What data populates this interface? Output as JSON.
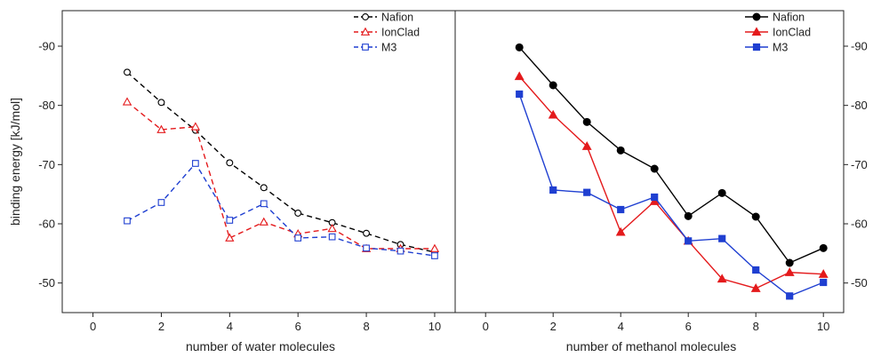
{
  "chart_data": [
    {
      "type": "line",
      "panel": "left",
      "xlabel": "number of water molecules",
      "ylabel": "binding energy [kJ/mol]",
      "xlim": [
        -0.9,
        10.6
      ],
      "ylim": [
        -45,
        -96
      ],
      "xticks": [
        "0",
        "2",
        "4",
        "6",
        "8",
        "10"
      ],
      "yticks": [
        "-90",
        "-80",
        "-70",
        "-60",
        "-50"
      ],
      "y_axis_side": "left",
      "line_style": "dashed",
      "marker_fill": "open",
      "grid": false,
      "legend_position": "top-right",
      "x": [
        1,
        2,
        3,
        4,
        5,
        6,
        7,
        8,
        9,
        10
      ],
      "series": [
        {
          "name": "Nafion",
          "color": "#000000",
          "marker": "circle",
          "values": [
            -85.6,
            -80.5,
            -75.8,
            -70.3,
            -66.1,
            -61.8,
            -60.2,
            -58.4,
            -56.5,
            -55.2
          ]
        },
        {
          "name": "IonClad",
          "color": "#e41a1c",
          "marker": "triangle",
          "values": [
            -80.6,
            -75.9,
            -76.4,
            -57.6,
            -60.3,
            -58.3,
            -59.2,
            -55.8,
            -55.8,
            -55.8
          ]
        },
        {
          "name": "M3",
          "color": "#1f3fd1",
          "marker": "square",
          "values": [
            -60.5,
            -63.6,
            -70.2,
            -60.6,
            -63.4,
            -57.6,
            -57.8,
            -55.9,
            -55.4,
            -54.6
          ]
        }
      ]
    },
    {
      "type": "line",
      "panel": "right",
      "xlabel": "number of methanol molecules",
      "ylabel": "",
      "xlim": [
        -0.9,
        10.6
      ],
      "ylim": [
        -45,
        -96
      ],
      "xticks": [
        "0",
        "2",
        "4",
        "6",
        "8",
        "10"
      ],
      "yticks": [
        "-90",
        "-80",
        "-70",
        "-60",
        "-50"
      ],
      "y_axis_side": "right",
      "line_style": "solid",
      "marker_fill": "filled",
      "grid": false,
      "legend_position": "top-right",
      "x": [
        1,
        2,
        3,
        4,
        5,
        6,
        7,
        8,
        9,
        10
      ],
      "series": [
        {
          "name": "Nafion",
          "color": "#000000",
          "marker": "circle",
          "values": [
            -89.8,
            -83.4,
            -77.2,
            -72.4,
            -69.3,
            -61.3,
            -65.2,
            -61.2,
            -53.4,
            -55.9
          ]
        },
        {
          "name": "IonClad",
          "color": "#e41a1c",
          "marker": "triangle",
          "values": [
            -84.9,
            -78.4,
            -73.1,
            -58.6,
            -63.8,
            -57.1,
            -50.7,
            -49.1,
            -51.8,
            -51.5
          ]
        },
        {
          "name": "M3",
          "color": "#1f3fd1",
          "marker": "square",
          "values": [
            -81.9,
            -65.7,
            -65.3,
            -62.4,
            -64.5,
            -57.1,
            -57.5,
            -52.2,
            -47.8,
            -50.1
          ]
        }
      ]
    }
  ]
}
